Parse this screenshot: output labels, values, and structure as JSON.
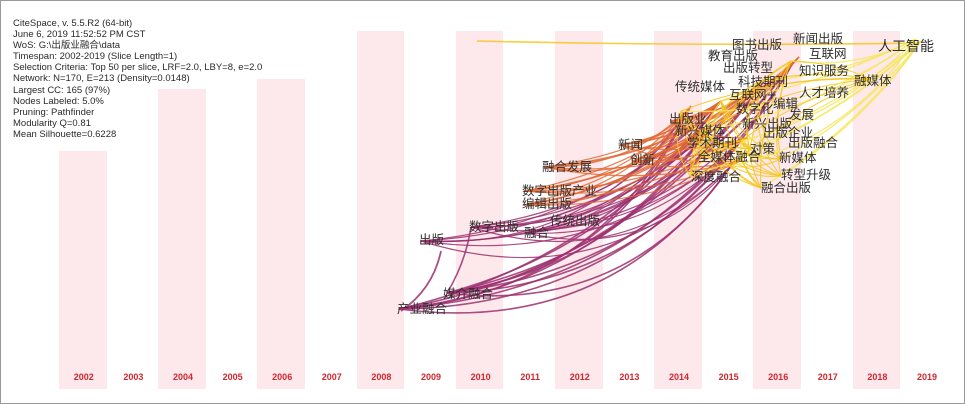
{
  "info": {
    "lines": [
      "CiteSpace, v. 5.5.R2 (64-bit)",
      "June 6, 2019 11:52:52 PM CST",
      "WoS: G:\\出版业融合\\data",
      "Timespan: 2002-2019 (Slice Length=1)",
      "Selection Criteria: Top 50 per slice, LRF=2.0, LBY=8, e=2.0",
      "Network: N=170, E=213 (Density=0.0148)",
      "Largest CC: 165 (97%)",
      "Nodes Labeled: 5.0%",
      "Pruning: Pathfinder",
      "Modularity Q=0.81",
      "Mean Silhouette=0.6228"
    ]
  },
  "years": [
    "2002",
    "2003",
    "2004",
    "2005",
    "2006",
    "2007",
    "2008",
    "2009",
    "2010",
    "2011",
    "2012",
    "2013",
    "2014",
    "2015",
    "2016",
    "2017",
    "2018",
    "2019"
  ],
  "keywords": [
    "产业融合",
    "媒介融合",
    "出版",
    "数字出版",
    "融合",
    "传统出版",
    "编辑出版",
    "数字出版产业",
    "融合发展",
    "新闻",
    "创新",
    "学术期刊",
    "出版业",
    "新兴媒体",
    "传统媒体",
    "全媒体融合",
    "深度融合",
    "对策",
    "新媒体",
    "转型升级",
    "融合出版",
    "出版融合",
    "出版企业",
    "新兴出版",
    "数字化",
    "编辑",
    "发展",
    "互联网+",
    "科技期刊",
    "人才培养",
    "出版转型",
    "教育出版",
    "图书出版",
    "新闻出版",
    "互联网",
    "知识服务",
    "融媒体",
    "人工智能"
  ],
  "colors": {
    "stripe": "#fde8ec",
    "year_label": "#d0272e",
    "early_link": "#9c2f6f",
    "mid_link": "#e06a35",
    "late_link": "#f6c51d",
    "latest_link": "#f7e65a"
  }
}
